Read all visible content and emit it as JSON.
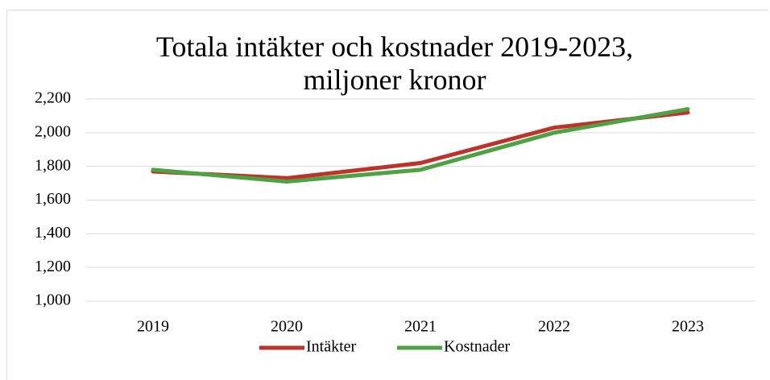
{
  "chart_data": {
    "type": "line",
    "title": "Totala intäkter och kostnader 2019-2023, miljoner kronor",
    "categories": [
      "2019",
      "2020",
      "2021",
      "2022",
      "2023"
    ],
    "series": [
      {
        "name": "Intäkter",
        "color": "#c0312b",
        "values": [
          1770,
          1730,
          1820,
          2030,
          2120
        ]
      },
      {
        "name": "Kostnader",
        "color": "#4ea244",
        "values": [
          1780,
          1710,
          1780,
          2000,
          2140
        ]
      }
    ],
    "ylim": [
      1000,
      2200
    ],
    "yticks": [
      {
        "value": 1000,
        "label": "1,000"
      },
      {
        "value": 1200,
        "label": "1,200"
      },
      {
        "value": 1400,
        "label": "1,400"
      },
      {
        "value": 1600,
        "label": "1,600"
      },
      {
        "value": 1800,
        "label": "1,800"
      },
      {
        "value": 2000,
        "label": "2,000"
      },
      {
        "value": 2200,
        "label": "2,200"
      }
    ],
    "grid": true,
    "legend": "bottom"
  }
}
